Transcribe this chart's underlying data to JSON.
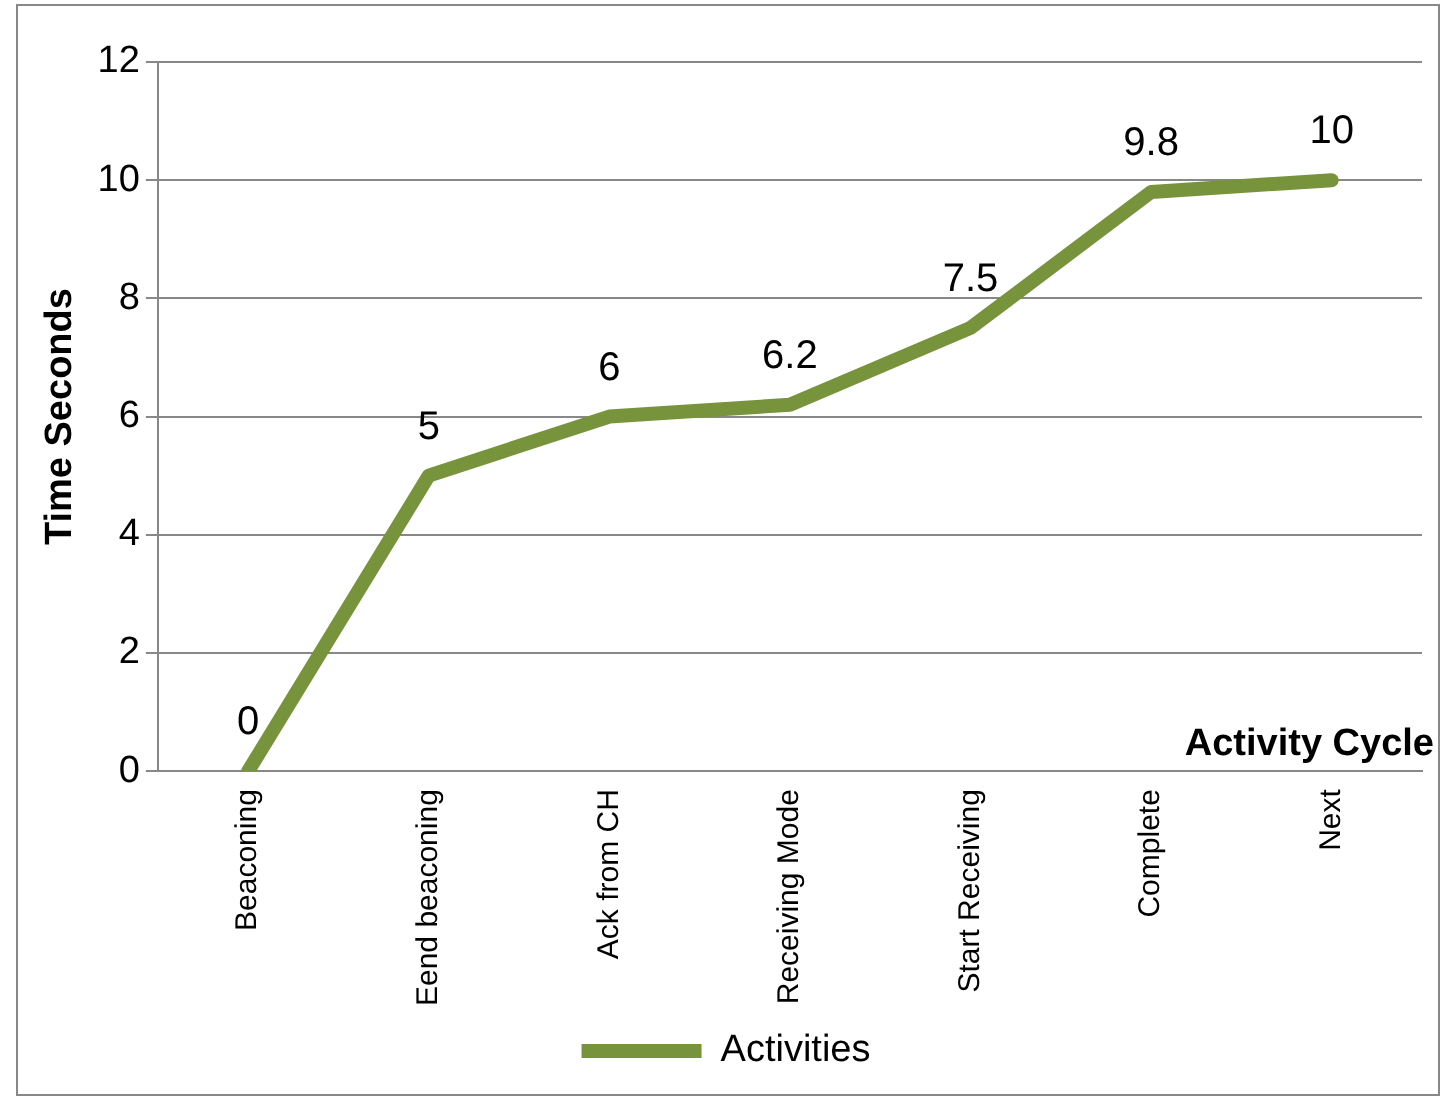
{
  "chart_data": {
    "type": "line",
    "xlabel": "Activity Cycle",
    "ylabel": "Time Seconds",
    "categories": [
      "Beaconing",
      "Eend beaconing",
      "Ack from CH",
      "Receiving Mode",
      "Start Receiving",
      "Complete",
      "Next"
    ],
    "series": [
      {
        "name": "Activities",
        "color": "#77933c",
        "values": [
          0,
          5,
          6,
          6.2,
          7.5,
          9.8,
          10
        ]
      }
    ],
    "ylim": [
      0,
      12
    ],
    "yticks": [
      0,
      2,
      4,
      6,
      8,
      10,
      12
    ],
    "grid": "y",
    "legend": "bottom",
    "data_labels": true,
    "marker": "none",
    "line_style": "solid"
  }
}
